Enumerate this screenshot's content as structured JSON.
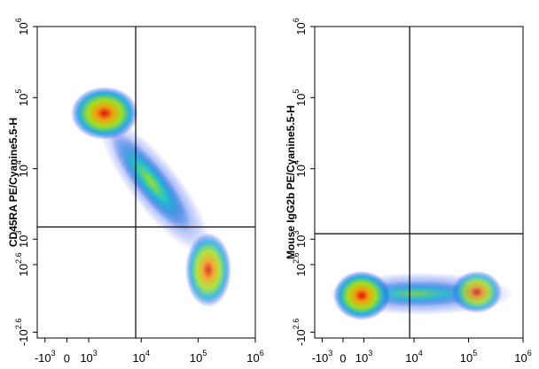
{
  "chart_data": [
    {
      "type": "density",
      "y_label": "CD45RA PE/Cyanine5.5-H",
      "xlim": [
        -1500,
        1000000
      ],
      "ylim": [
        -500,
        1000000
      ],
      "xticks": [
        {
          "value": -1000,
          "label": "-10",
          "exponent": "3"
        },
        0,
        {
          "value": 1000,
          "label": "10",
          "exponent": "3"
        },
        {
          "value": 10000,
          "label": "10",
          "exponent": "4"
        },
        {
          "value": 100000,
          "label": "10",
          "exponent": "5"
        },
        {
          "value": 1000000,
          "label": "10",
          "exponent": "6"
        }
      ],
      "yticks": [
        {
          "value": -398,
          "label": "-10",
          "exponent": "2.6"
        },
        {
          "value": 398,
          "label": "10",
          "exponent": "2.6"
        },
        {
          "value": 1000,
          "label": "10",
          "exponent": "3"
        },
        {
          "value": 10000,
          "label": "10",
          "exponent": "4"
        },
        {
          "value": 100000,
          "label": "10",
          "exponent": "5"
        },
        {
          "value": 1000000,
          "label": "10",
          "exponent": "6"
        }
      ],
      "gate": {
        "x": 8000,
        "y": 1500
      }
    },
    {
      "type": "density",
      "y_label": "Mouse IgG2b PE/Cyanine5.5-H",
      "xlim": [
        -1500,
        1000000
      ],
      "ylim": [
        -500,
        1000000
      ],
      "xticks": [
        {
          "value": -1000,
          "label": "-10",
          "exponent": "3"
        },
        0,
        {
          "value": 1000,
          "label": "10",
          "exponent": "3"
        },
        {
          "value": 10000,
          "label": "10",
          "exponent": "4"
        },
        {
          "value": 100000,
          "label": "10",
          "exponent": "5"
        },
        {
          "value": 1000000,
          "label": "10",
          "exponent": "6"
        }
      ],
      "yticks": [
        {
          "value": -398,
          "label": "-10",
          "exponent": "2.6"
        },
        {
          "value": 398,
          "label": "10",
          "exponent": "2.6"
        },
        {
          "value": 1000,
          "label": "10",
          "exponent": "3"
        },
        {
          "value": 10000,
          "label": "10",
          "exponent": "4"
        },
        {
          "value": 100000,
          "label": "10",
          "exponent": "5"
        },
        {
          "value": 1000000,
          "label": "10",
          "exponent": "6"
        }
      ],
      "gate": {
        "x": 8300,
        "y": 1200
      }
    }
  ]
}
